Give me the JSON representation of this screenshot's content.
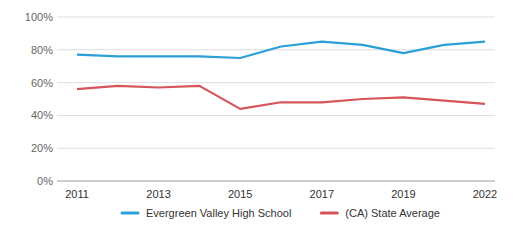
{
  "chart_data": {
    "type": "line",
    "categories": [
      "2011",
      null,
      "2013",
      null,
      "2015",
      null,
      "2017",
      null,
      "2019",
      null,
      "2022"
    ],
    "series": [
      {
        "name": "Evergreen Valley High School",
        "color": "#2a9fd8",
        "values": [
          77,
          76,
          76,
          76,
          75,
          82,
          85,
          83,
          78,
          83,
          85
        ]
      },
      {
        "name": "(CA) State Average",
        "color": "#d6545a",
        "values": [
          56,
          58,
          57,
          58,
          44,
          48,
          48,
          50,
          51,
          49,
          47
        ]
      }
    ],
    "ylim": [
      0,
      100
    ],
    "yticks": [
      {
        "value": 0,
        "label": "0%"
      },
      {
        "value": 20,
        "label": "20%"
      },
      {
        "value": 40,
        "label": "40%"
      },
      {
        "value": 60,
        "label": "60%"
      },
      {
        "value": 80,
        "label": "80%"
      },
      {
        "value": 100,
        "label": "100%"
      }
    ],
    "grid": true,
    "legend": "bottom"
  }
}
